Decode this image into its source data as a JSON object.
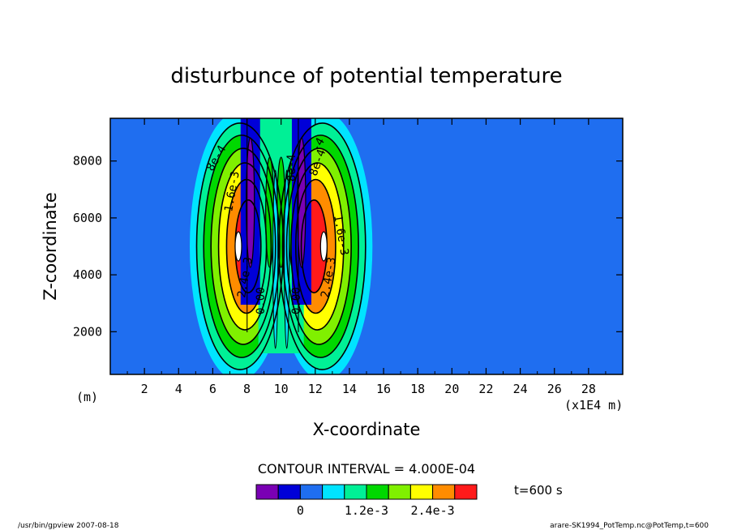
{
  "chart_data": {
    "type": "heatmap",
    "title": "disturbunce of potential temperature",
    "xlabel": "X-coordinate",
    "ylabel": "Z-coordinate",
    "x_unit_left": "(m)",
    "x_unit_right": "(x1E4 m)",
    "xlim": [
      0,
      30
    ],
    "ylim": [
      500,
      9500
    ],
    "x_ticks": [
      "2",
      "4",
      "6",
      "8",
      "10",
      "12",
      "14",
      "16",
      "18",
      "20",
      "22",
      "24",
      "26",
      "28"
    ],
    "y_ticks": [
      "2000",
      "4000",
      "6000",
      "8000"
    ],
    "contour_interval_text": "CONTOUR INTERVAL = 4.000E-04",
    "time_text": "t=600 s",
    "contour_labels": [
      "8e-4",
      "1.6e-3",
      "2.4e-3",
      "0.00",
      "8e-4",
      "1.6e-3",
      "2.4e-3",
      "0.00",
      "8e-4",
      "-4"
    ],
    "colorbar": {
      "colors": [
        "#7a00b4",
        "#0000d8",
        "#1f6ef0",
        "#00e4ff",
        "#00f096",
        "#00d800",
        "#80f000",
        "#ffff00",
        "#ff8c00",
        "#ff1a1a"
      ],
      "tick_labels": [
        "0",
        "1.2e-3",
        "2.4e-3"
      ]
    },
    "field": {
      "background_color": "#1f6ef0",
      "warm_centers": [
        {
          "x": 7.5,
          "z": 5000,
          "peak": 0.0032
        },
        {
          "x": 12.5,
          "z": 5000,
          "peak": 0.0032
        }
      ],
      "negative_columns_x": [
        8.2,
        11.2
      ]
    }
  },
  "footer": {
    "left": "/usr/bin/gpview   2007-08-18",
    "right": "arare-SK1994_PotTemp.nc@PotTemp,t=600"
  }
}
